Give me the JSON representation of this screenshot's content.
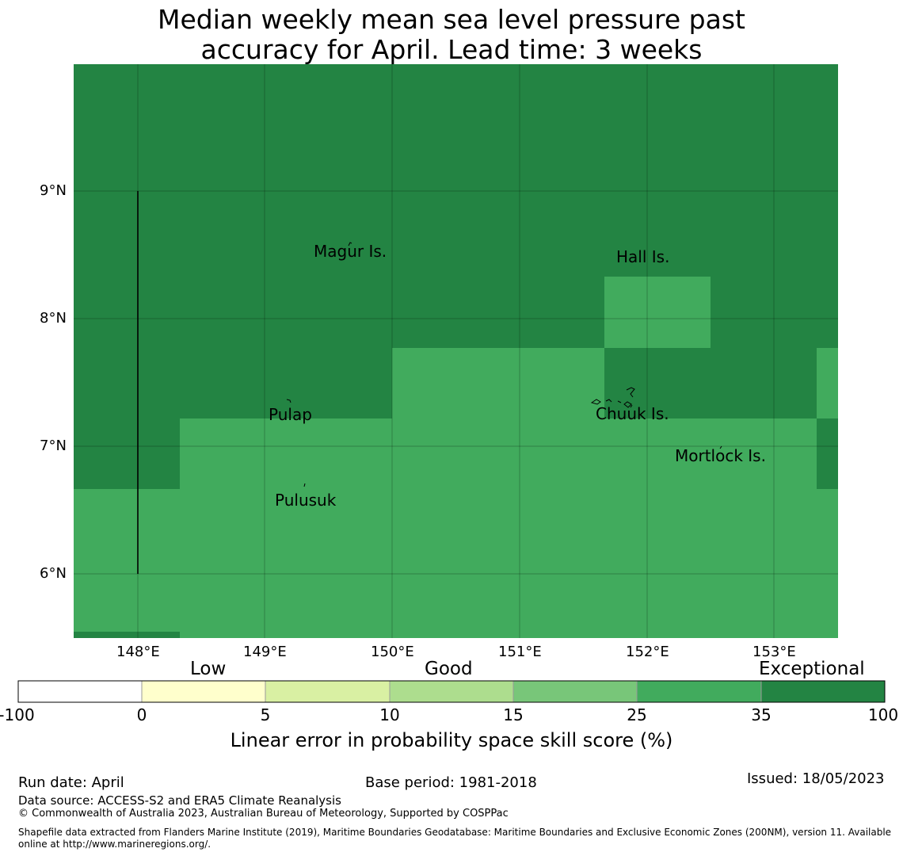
{
  "title_line1": "Median weekly mean sea level pressure past",
  "title_line2": "accuracy for April. Lead time: 3 weeks",
  "map": {
    "lon_range": [
      147.5,
      153.5
    ],
    "lat_range": [
      5.5,
      10
    ],
    "lon_ticks": [
      "148°E",
      "149°E",
      "150°E",
      "151°E",
      "152°E",
      "153°E"
    ],
    "lat_ticks": [
      "9°N",
      "8°N",
      "7°N",
      "6°N"
    ],
    "colors": {
      "exceptional": "#238443",
      "good_high": "#41ab5d"
    },
    "places": [
      "Magur Is.",
      "Hall Is.",
      "Pulap",
      "Chuuk Is.",
      "Mortlock Is.",
      "Pulusuk"
    ]
  },
  "legend": {
    "categories": [
      "Low",
      "Good",
      "Exceptional"
    ],
    "ticks": [
      "-100",
      "0",
      "5",
      "10",
      "15",
      "25",
      "35",
      "100"
    ],
    "colors": [
      "#ffffff",
      "#ffffcc",
      "#d9f0a3",
      "#addd8e",
      "#78c679",
      "#41ab5d",
      "#238443"
    ],
    "label": "Linear error in probability space skill score (%)"
  },
  "footer": {
    "run_date": "Run date: April",
    "base_period": "Base period: 1981-2018",
    "issued": "Issued: 18/05/2023",
    "data_source": "Data source: ACCESS-S2 and ERA5 Climate Reanalysis",
    "copyright": "© Commonwealth of Australia 2023, Australian Bureau of Meteorology, Supported by COSPPac",
    "shapefile_line1": "Shapefile data extracted from Flanders Marine Institute (2019), Maritime Boundaries Geodatabase: Maritime Boundaries and Exclusive Economic Zones (200NM), version 11. Available",
    "shapefile_line2": "online at http://www.marineregions.org/."
  }
}
